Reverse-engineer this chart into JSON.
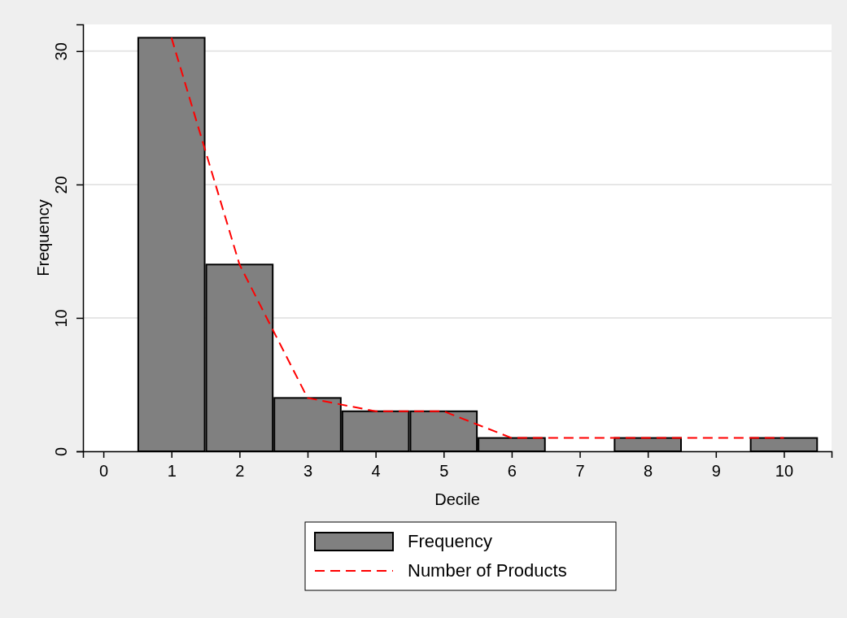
{
  "chart_data": {
    "type": "histogram",
    "xlabel": "Decile",
    "ylabel": "Frequency",
    "xlim": [
      -0.3,
      10.7
    ],
    "xticks": [
      0,
      1,
      2,
      3,
      4,
      5,
      6,
      7,
      8,
      9,
      10
    ],
    "ylim": [
      0,
      32
    ],
    "yticks": [
      0,
      10,
      20,
      30
    ],
    "grid": "y",
    "legend": "bottom",
    "series": [
      {
        "name": "Frequency",
        "color": "#808080",
        "bins": [
          0.5,
          1.5,
          2.5,
          3.5,
          4.5,
          5.5,
          6.5,
          7.5,
          8.5,
          9.5,
          10.5
        ],
        "values": [
          31,
          14,
          4,
          3,
          3,
          1,
          0,
          1,
          0,
          1
        ]
      },
      {
        "type": "line",
        "name": "Number of Products",
        "color": "#ff0000",
        "line_style": "dashed",
        "x": [
          1,
          2,
          3,
          4,
          5,
          6,
          7,
          8,
          9,
          10
        ],
        "values": [
          31,
          14,
          4,
          3,
          3,
          1,
          1,
          1,
          1,
          1
        ]
      }
    ]
  }
}
